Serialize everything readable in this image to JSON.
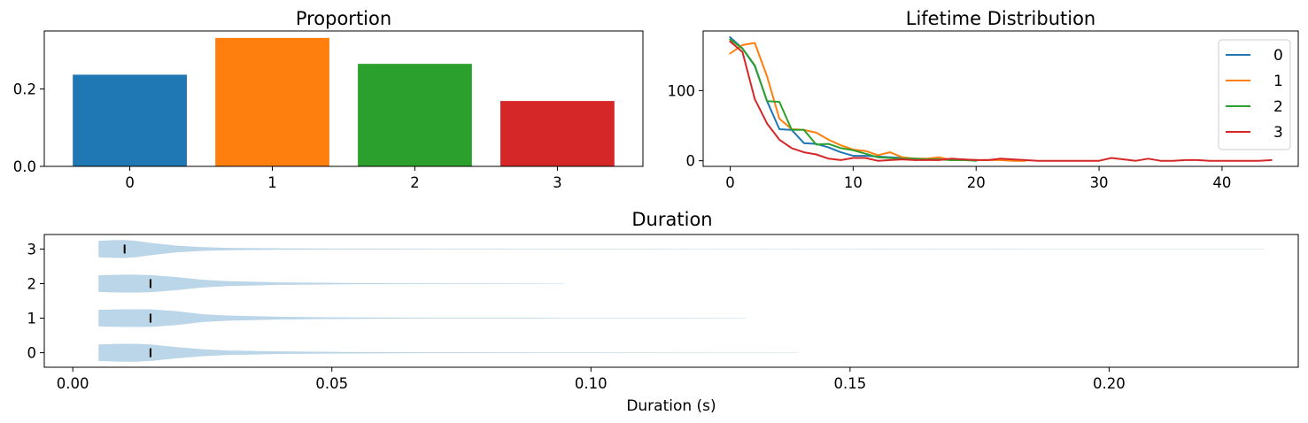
{
  "chart_data": [
    {
      "id": "proportion",
      "type": "bar",
      "title": "Proportion",
      "xlabel": "",
      "ylabel": "",
      "categories": [
        "0",
        "1",
        "2",
        "3"
      ],
      "values": [
        0.237,
        0.332,
        0.265,
        0.169
      ],
      "colors": [
        "#1f77b4",
        "#ff7f0e",
        "#2ca02c",
        "#d62728"
      ],
      "ylim": [
        0,
        0.35
      ],
      "yticks": [
        0.0,
        0.2
      ],
      "ytick_labels": [
        "0.0",
        "0.2"
      ],
      "grid": false
    },
    {
      "id": "lifetime",
      "type": "line",
      "title": "Lifetime Distribution",
      "xlabel": "",
      "ylabel": "",
      "xlim": [
        -2.2,
        46.2
      ],
      "ylim": [
        -8,
        185
      ],
      "xticks": [
        0,
        10,
        20,
        30,
        40
      ],
      "xtick_labels": [
        "0",
        "10",
        "20",
        "30",
        "40"
      ],
      "yticks": [
        0,
        100
      ],
      "ytick_labels": [
        "0",
        "100"
      ],
      "legend": "top-right",
      "grid": false,
      "series": [
        {
          "name": "0",
          "color": "#1f77b4",
          "x": [
            0,
            1,
            2,
            3,
            4,
            5,
            6,
            7,
            8,
            9,
            10,
            11,
            12,
            13,
            14,
            15,
            16,
            17,
            18,
            19,
            20
          ],
          "y": [
            176,
            160,
            135,
            85,
            45,
            44,
            25,
            24,
            19,
            12,
            7,
            7,
            6,
            5,
            4,
            3,
            2,
            2,
            1,
            1,
            1
          ]
        },
        {
          "name": "1",
          "color": "#ff7f0e",
          "x": [
            0,
            1,
            2,
            3,
            4,
            5,
            6,
            7,
            8,
            9,
            10,
            11,
            12,
            13,
            14,
            15,
            16,
            17,
            18,
            19,
            20,
            21,
            22,
            23,
            24
          ],
          "y": [
            153,
            165,
            168,
            120,
            60,
            45,
            44,
            40,
            30,
            22,
            16,
            14,
            8,
            12,
            5,
            3,
            3,
            5,
            1,
            1,
            1,
            1,
            1,
            0,
            0
          ]
        },
        {
          "name": "2",
          "color": "#2ca02c",
          "x": [
            0,
            1,
            2,
            3,
            4,
            5,
            6,
            7,
            8,
            9,
            10,
            11,
            12,
            13,
            14,
            15,
            16,
            17,
            18,
            19,
            20
          ],
          "y": [
            173,
            160,
            136,
            85,
            84,
            44,
            44,
            23,
            24,
            18,
            15,
            10,
            5,
            4,
            3,
            3,
            2,
            2,
            1,
            1,
            0
          ]
        },
        {
          "name": "3",
          "color": "#d62728",
          "x": [
            0,
            1,
            2,
            3,
            4,
            5,
            6,
            7,
            8,
            9,
            10,
            11,
            12,
            13,
            14,
            15,
            16,
            17,
            18,
            19,
            20,
            21,
            22,
            23,
            24,
            25,
            26,
            27,
            28,
            29,
            30,
            31,
            32,
            33,
            34,
            35,
            36,
            37,
            38,
            39,
            40,
            41,
            42,
            43,
            44
          ],
          "y": [
            170,
            155,
            88,
            53,
            30,
            18,
            12,
            9,
            3,
            1,
            4,
            4,
            0,
            1,
            2,
            1,
            1,
            1,
            3,
            2,
            1,
            1,
            3,
            2,
            1,
            0,
            0,
            0,
            0,
            0,
            0,
            4,
            2,
            0,
            3,
            0,
            0,
            1,
            1,
            0,
            0,
            0,
            0,
            0,
            1
          ]
        }
      ]
    },
    {
      "id": "duration",
      "type": "violin",
      "title": "Duration",
      "xlabel": "Duration (s)",
      "ylabel": "",
      "orientation": "horizontal",
      "categories": [
        "0",
        "1",
        "2",
        "3"
      ],
      "fill_color": "#1f77b4",
      "median_color": "#000000",
      "xlim": [
        -0.0055,
        0.2365
      ],
      "ylim": [
        -0.42,
        3.42
      ],
      "xticks": [
        0.0,
        0.05,
        0.1,
        0.15,
        0.2
      ],
      "xtick_labels": [
        "0.00",
        "0.05",
        "0.10",
        "0.15",
        "0.20"
      ],
      "grid": false,
      "violins": [
        {
          "category": "0",
          "min": 0.005,
          "max": 0.14,
          "median": 0.015,
          "profile": [
            [
              0.005,
              0.92
            ],
            [
              0.009,
              0.99
            ],
            [
              0.012,
              1.0
            ],
            [
              0.015,
              0.92
            ],
            [
              0.02,
              0.62
            ],
            [
              0.025,
              0.38
            ],
            [
              0.03,
              0.24
            ],
            [
              0.04,
              0.13
            ],
            [
              0.05,
              0.08
            ],
            [
              0.06,
              0.05
            ],
            [
              0.07,
              0.035
            ],
            [
              0.09,
              0.02
            ],
            [
              0.11,
              0.01
            ],
            [
              0.14,
              0.0
            ]
          ]
        },
        {
          "category": "1",
          "min": 0.005,
          "max": 0.13,
          "median": 0.015,
          "profile": [
            [
              0.005,
              0.92
            ],
            [
              0.009,
              0.98
            ],
            [
              0.012,
              0.99
            ],
            [
              0.015,
              0.98
            ],
            [
              0.018,
              0.85
            ],
            [
              0.02,
              0.78
            ],
            [
              0.025,
              0.42
            ],
            [
              0.03,
              0.28
            ],
            [
              0.04,
              0.14
            ],
            [
              0.05,
              0.08
            ],
            [
              0.06,
              0.05
            ],
            [
              0.07,
              0.035
            ],
            [
              0.09,
              0.02
            ],
            [
              0.11,
              0.01
            ],
            [
              0.13,
              0.0
            ]
          ]
        },
        {
          "category": "2",
          "min": 0.005,
          "max": 0.095,
          "median": 0.015,
          "profile": [
            [
              0.005,
              0.92
            ],
            [
              0.009,
              0.99
            ],
            [
              0.012,
              1.0
            ],
            [
              0.015,
              0.95
            ],
            [
              0.02,
              0.72
            ],
            [
              0.025,
              0.42
            ],
            [
              0.03,
              0.26
            ],
            [
              0.04,
              0.13
            ],
            [
              0.05,
              0.07
            ],
            [
              0.06,
              0.04
            ],
            [
              0.07,
              0.025
            ],
            [
              0.08,
              0.012
            ],
            [
              0.095,
              0.0
            ]
          ]
        },
        {
          "category": "3",
          "min": 0.005,
          "max": 0.23,
          "median": 0.01,
          "profile": [
            [
              0.005,
              0.92
            ],
            [
              0.008,
              0.99
            ],
            [
              0.01,
              1.0
            ],
            [
              0.012,
              0.92
            ],
            [
              0.015,
              0.68
            ],
            [
              0.02,
              0.36
            ],
            [
              0.025,
              0.2
            ],
            [
              0.03,
              0.12
            ],
            [
              0.04,
              0.06
            ],
            [
              0.05,
              0.04
            ],
            [
              0.07,
              0.02
            ],
            [
              0.1,
              0.01
            ],
            [
              0.15,
              0.005
            ],
            [
              0.23,
              0.0
            ]
          ]
        }
      ]
    }
  ]
}
